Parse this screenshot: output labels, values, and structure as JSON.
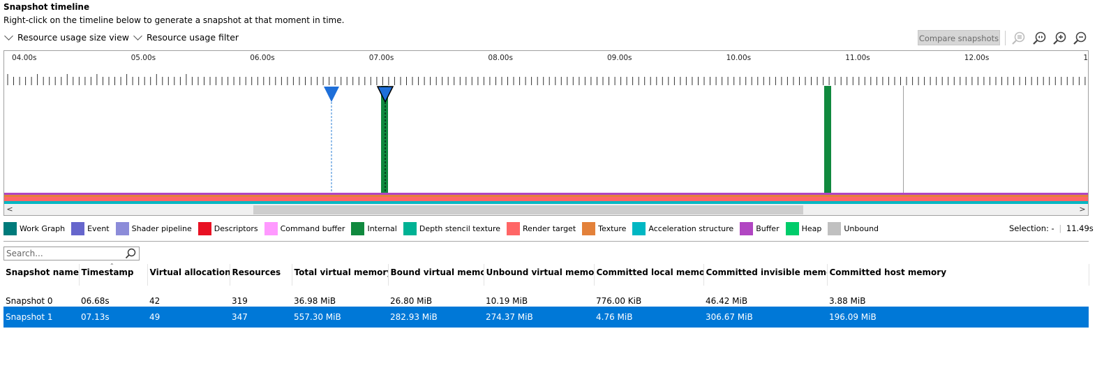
{
  "header": {
    "title": "Snapshot timeline",
    "subtitle": "Right-click on the timeline below to generate a snapshot at that moment in time.",
    "dropdown_size_view": "Resource usage size view",
    "dropdown_filter": "Resource usage filter",
    "compare_button": "Compare snapshots"
  },
  "timeline": {
    "tick_labels": [
      "04.00s",
      "05.00s",
      "06.00s",
      "07.00s",
      "08.00s",
      "09.00s",
      "10.00s",
      "11.00s",
      "12.00s",
      "1"
    ],
    "markers": [
      {
        "name": "Snapshot 0",
        "time": "06.68s"
      },
      {
        "name": "Snapshot 1",
        "time": "07.13s"
      }
    ],
    "scroll_left": "<",
    "scroll_right": ">"
  },
  "legend": [
    {
      "label": "Work Graph",
      "color": "#007b7b"
    },
    {
      "label": "Event",
      "color": "#6666cc"
    },
    {
      "label": "Shader pipeline",
      "color": "#8c8cd9"
    },
    {
      "label": "Descriptors",
      "color": "#e81123"
    },
    {
      "label": "Command buffer",
      "color": "#ff99ff"
    },
    {
      "label": "Internal",
      "color": "#10893e"
    },
    {
      "label": "Depth stencil texture",
      "color": "#00b294"
    },
    {
      "label": "Render target",
      "color": "#ff6666"
    },
    {
      "label": "Texture",
      "color": "#e3813a"
    },
    {
      "label": "Acceleration structure",
      "color": "#00b7c3"
    },
    {
      "label": "Buffer",
      "color": "#b146c2"
    },
    {
      "label": "Heap",
      "color": "#00cc6a"
    },
    {
      "label": "Unbound",
      "color": "#c0c0c0"
    }
  ],
  "selection": {
    "label": "Selection:",
    "from": "-",
    "to": "11.49s"
  },
  "search": {
    "placeholder": "Search..."
  },
  "table": {
    "columns": [
      "Snapshot name",
      "Timestamp",
      "Virtual allocations",
      "Resources",
      "Total virtual memory",
      "Bound virtual memory",
      "Unbound virtual memory",
      "Committed local memory",
      "Committed invisible memory",
      "Committed host memory"
    ],
    "rows": [
      [
        "Snapshot 0",
        "06.68s",
        "42",
        "319",
        "36.98 MiB",
        "26.80 MiB",
        "10.19 MiB",
        "776.00 KiB",
        "46.42 MiB",
        "3.88 MiB"
      ],
      [
        "Snapshot 1",
        "07.13s",
        "49",
        "347",
        "557.30 MiB",
        "282.93 MiB",
        "274.37 MiB",
        "4.76 MiB",
        "306.67 MiB",
        "196.09 MiB"
      ]
    ]
  }
}
